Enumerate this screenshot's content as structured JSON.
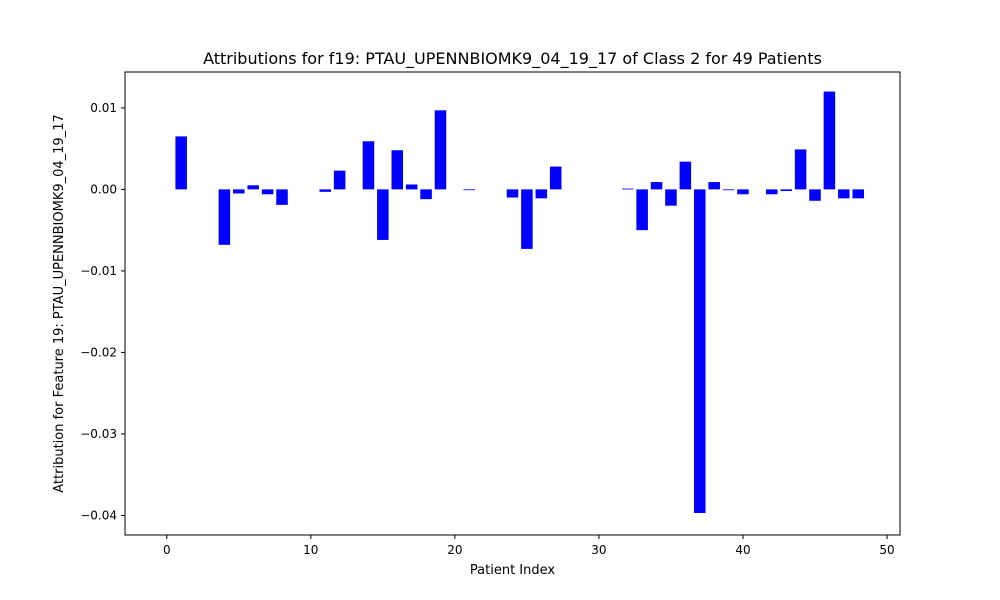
{
  "chart_data": {
    "type": "bar",
    "title": "Attributions for f19: PTAU_UPENNBIOMK9_04_19_17 of Class 2 for 49 Patients",
    "xlabel": "Patient Index",
    "ylabel": "Attribution for Feature 19: PTAU_UPENNBIOMK9_04_19_17",
    "xlim": [
      -2.9,
      50.9
    ],
    "ylim": [
      -0.0424,
      0.0144
    ],
    "xticks": [
      0,
      10,
      20,
      30,
      40,
      50
    ],
    "xtick_labels": [
      "0",
      "10",
      "20",
      "30",
      "40",
      "50"
    ],
    "yticks": [
      0.01,
      0.0,
      -0.01,
      -0.02,
      -0.03,
      -0.04
    ],
    "ytick_labels": [
      "0.01",
      "0.00",
      "−0.01",
      "−0.02",
      "−0.03",
      "−0.04"
    ],
    "bar_color": "#0000ff",
    "grid": false,
    "legend": "none",
    "x": [
      0,
      1,
      2,
      3,
      4,
      5,
      6,
      7,
      8,
      9,
      10,
      11,
      12,
      13,
      14,
      15,
      16,
      17,
      18,
      19,
      20,
      21,
      22,
      23,
      24,
      25,
      26,
      27,
      28,
      29,
      30,
      31,
      32,
      33,
      34,
      35,
      36,
      37,
      38,
      39,
      40,
      41,
      42,
      43,
      44,
      45,
      46,
      47,
      48
    ],
    "values": [
      0,
      0.0065,
      0,
      0,
      -0.0068,
      -0.0005,
      0.0005,
      -0.0006,
      -0.0019,
      0,
      0,
      -0.0003,
      0.0023,
      0,
      0.0059,
      -0.0062,
      0.0048,
      0.0006,
      -0.0012,
      0.0097,
      0,
      -0.0001,
      0,
      0,
      -0.001,
      -0.0073,
      -0.0011,
      0.0028,
      0,
      0,
      0,
      0,
      0.0001,
      -0.005,
      0.0009,
      -0.002,
      0.0034,
      -0.0397,
      0.0009,
      -0.0001,
      -0.0006,
      0,
      -0.0006,
      -0.0002,
      0.0049,
      -0.0014,
      0.012,
      -0.0011,
      -0.0011
    ]
  }
}
